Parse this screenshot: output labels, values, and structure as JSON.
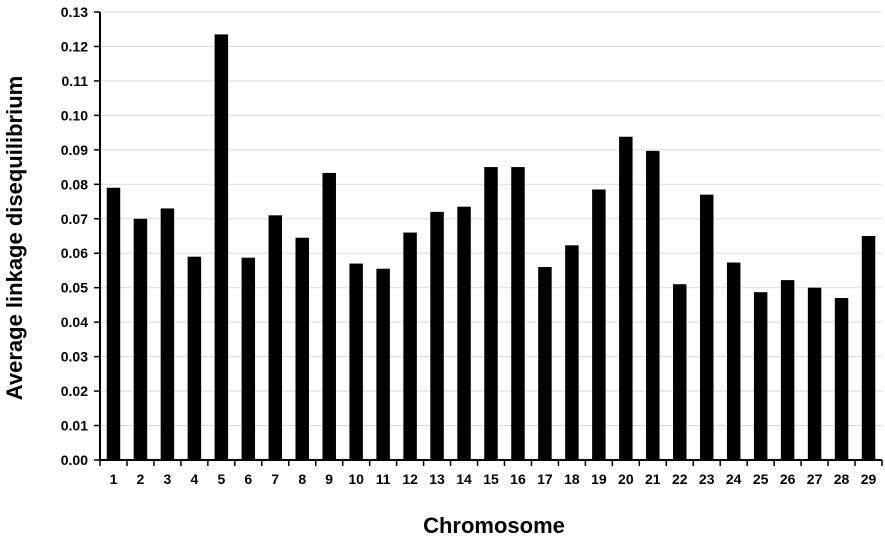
{
  "chart_data": {
    "type": "bar",
    "title": "",
    "xlabel": "Chromosome",
    "ylabel": "Average linkage disequilibrium",
    "ylim": [
      0,
      0.13
    ],
    "ytick_step": 0.01,
    "grid": true,
    "categories": [
      "1",
      "2",
      "3",
      "4",
      "5",
      "6",
      "7",
      "8",
      "9",
      "10",
      "11",
      "12",
      "13",
      "14",
      "15",
      "16",
      "17",
      "18",
      "19",
      "20",
      "21",
      "22",
      "23",
      "24",
      "25",
      "26",
      "27",
      "28",
      "29"
    ],
    "values": [
      0.079,
      0.07,
      0.073,
      0.059,
      0.1235,
      0.0587,
      0.071,
      0.0645,
      0.0833,
      0.057,
      0.0555,
      0.066,
      0.072,
      0.0735,
      0.085,
      0.085,
      0.056,
      0.0623,
      0.0785,
      0.0938,
      0.0897,
      0.051,
      0.077,
      0.0573,
      0.0487,
      0.0522,
      0.05,
      0.047,
      0.065
    ],
    "bar_color": "#000000",
    "grid_color": "#d9d9d9"
  }
}
